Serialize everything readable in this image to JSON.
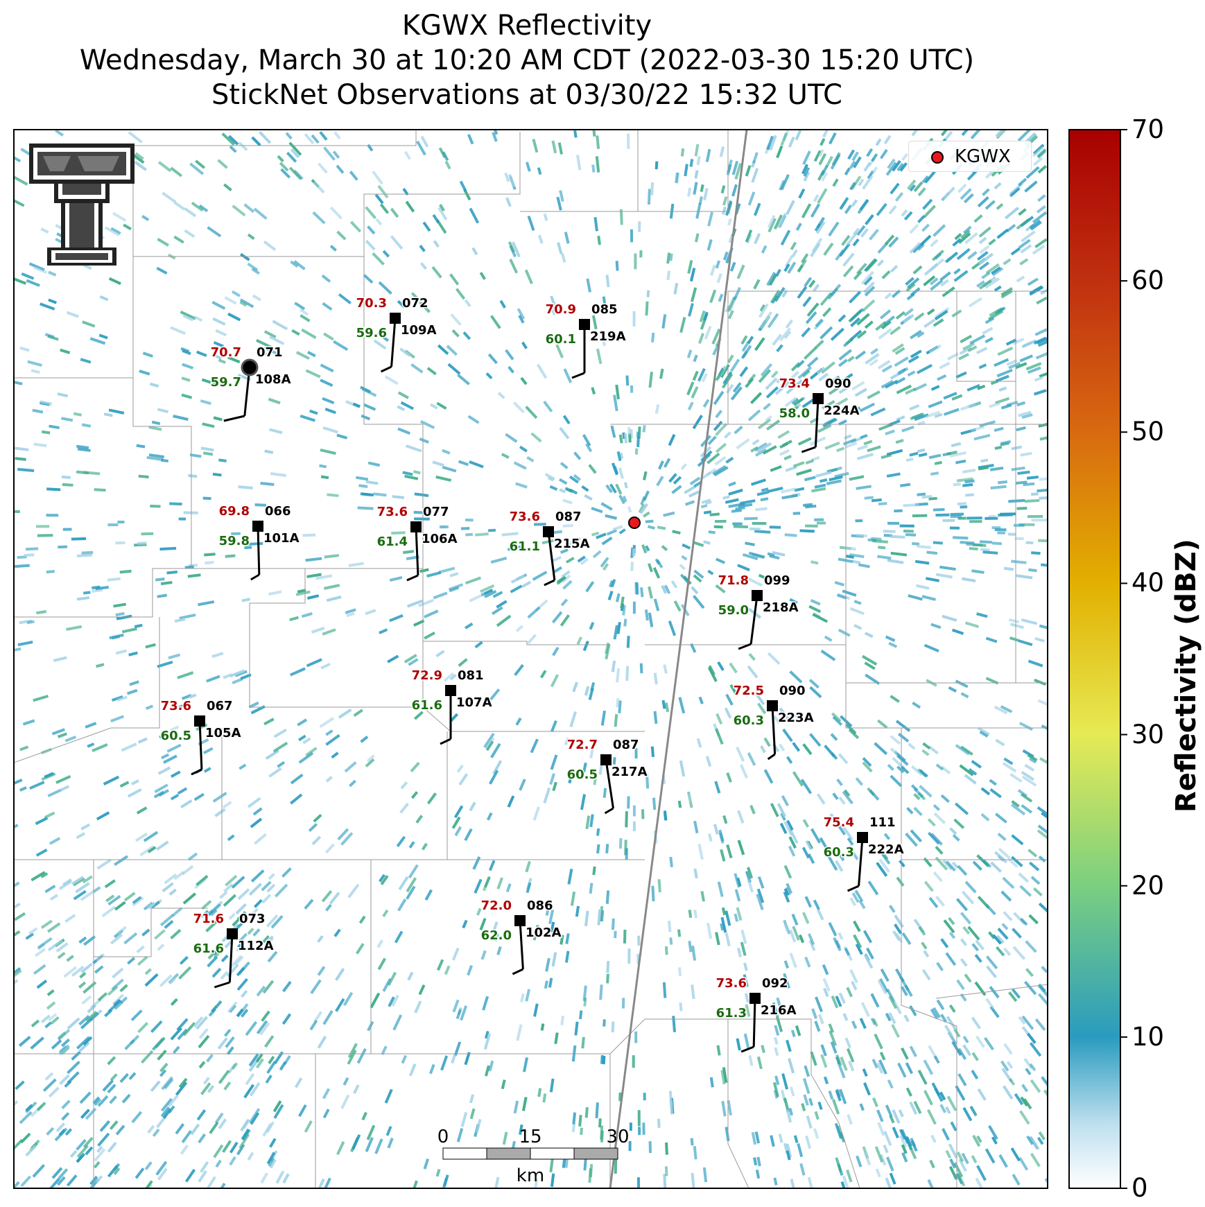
{
  "title": {
    "line1": "KGWX Reflectivity",
    "line2": "Wednesday, March 30 at 10:20 AM CDT (2022-03-30 15:20 UTC)",
    "line3": "StickNet Observations at 03/30/22 15:32 UTC"
  },
  "legend": {
    "label": "KGWX",
    "marker_color": "#e8191c"
  },
  "radar": {
    "name": "KGWX"
  },
  "colorbar": {
    "title": "Reflectivity (dBZ)",
    "ticks": [
      "0",
      "10",
      "20",
      "30",
      "40",
      "50",
      "60",
      "70"
    ],
    "colors": [
      "#ffffff",
      "#2a9bbf",
      "#3aaa85",
      "#a8dc6e",
      "#e8e84a",
      "#e0b000",
      "#d06010",
      "#b00000"
    ]
  },
  "scalebar": {
    "labels": [
      "0",
      "15",
      "30"
    ],
    "unit": "km"
  },
  "stations": [
    {
      "id": "108A",
      "temp": "70.7",
      "dew": "59.7",
      "pres": "071",
      "marker": "circle"
    },
    {
      "id": "109A",
      "temp": "70.3",
      "dew": "59.6",
      "pres": "072"
    },
    {
      "id": "219A",
      "temp": "70.9",
      "dew": "60.1",
      "pres": "085"
    },
    {
      "id": "224A",
      "temp": "73.4",
      "dew": "58.0",
      "pres": "090"
    },
    {
      "id": "101A",
      "temp": "69.8",
      "dew": "59.8",
      "pres": "066"
    },
    {
      "id": "106A",
      "temp": "73.6",
      "dew": "61.4",
      "pres": "077"
    },
    {
      "id": "215A",
      "temp": "73.6",
      "dew": "61.1",
      "pres": "087"
    },
    {
      "id": "218A",
      "temp": "71.8",
      "dew": "59.0",
      "pres": "099"
    },
    {
      "id": "107A",
      "temp": "72.9",
      "dew": "61.6",
      "pres": "081"
    },
    {
      "id": "223A",
      "temp": "72.5",
      "dew": "60.3",
      "pres": "090"
    },
    {
      "id": "105A",
      "temp": "73.6",
      "dew": "60.5",
      "pres": "067"
    },
    {
      "id": "217A",
      "temp": "72.7",
      "dew": "60.5",
      "pres": "087"
    },
    {
      "id": "222A",
      "temp": "75.4",
      "dew": "60.3",
      "pres": "111"
    },
    {
      "id": "112A",
      "temp": "71.6",
      "dew": "61.6",
      "pres": "073"
    },
    {
      "id": "102A",
      "temp": "72.0",
      "dew": "62.0",
      "pres": "086"
    },
    {
      "id": "216A",
      "temp": "73.6",
      "dew": "61.3",
      "pres": "092"
    }
  ],
  "colors": {
    "temp": "#b00000",
    "dew": "#1a6b10",
    "echo": "#2a9bbf",
    "echo_light": "#9fd0e6",
    "echo_green": "#3aaa85"
  }
}
